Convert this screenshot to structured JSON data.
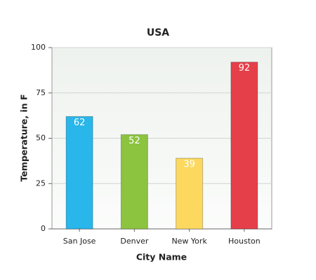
{
  "chart_data": {
    "type": "bar",
    "title": "USA",
    "x_label": "City Name",
    "y_label": "Temperature, in F",
    "categories": [
      "San Jose",
      "Denver",
      "New York",
      "Houston"
    ],
    "values": [
      62,
      52,
      39,
      92
    ],
    "colors": [
      "#29b6ea",
      "#8cc43f",
      "#fcd95e",
      "#e53f49"
    ],
    "ylim": [
      0,
      100
    ],
    "yticks": [
      0,
      25,
      50,
      75,
      100
    ],
    "grid": true
  }
}
